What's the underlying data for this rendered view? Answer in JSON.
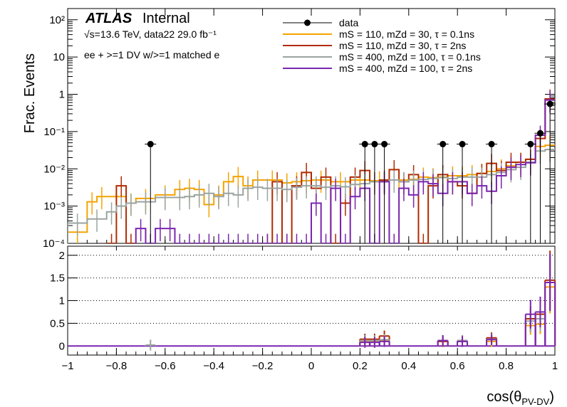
{
  "header": {
    "atlas_label": "ATLAS",
    "status_label": "Internal",
    "energy_line": "√s=13.6 TeV, data22 29.0 fb⁻¹",
    "selection_line": "ee + >=1 DV w/>=1 matched e"
  },
  "axes": {
    "ylabel_top": "Frac. Events",
    "xlabel": "cos(θPV-DV)",
    "xlabel_main": "cos(θ",
    "xlabel_sub": "PV-DV",
    "xlabel_close": ")",
    "top_yticks": [
      "10⁻⁴",
      "10⁻³",
      "10⁻²",
      "10⁻¹",
      "1",
      "10",
      "10²"
    ],
    "bottom_yticks": [
      "0",
      "0.5",
      "1",
      "1.5",
      "2"
    ],
    "xticks": [
      "−1",
      "−0.8",
      "−0.6",
      "−0.4",
      "−0.2",
      "0",
      "0.2",
      "0.4",
      "0.6",
      "0.8",
      "1"
    ]
  },
  "legend": [
    {
      "label": "data",
      "color": "#000000",
      "kind": "marker"
    },
    {
      "label": "mS = 110, mZd = 30, τ = 0.1ns",
      "color": "#f5a300",
      "kind": "line"
    },
    {
      "label": "mS = 110, mZd = 30, τ = 2ns",
      "color": "#b02a00",
      "kind": "line"
    },
    {
      "label": "mS = 400, mZd = 100, τ = 0.1ns",
      "color": "#9aa4a0",
      "kind": "line"
    },
    {
      "label": "mS = 400, mZd = 100, τ = 2ns",
      "color": "#7b25b0",
      "kind": "line"
    }
  ],
  "chart_data": {
    "type": "line",
    "subtype": "step-histogram-with-ratio",
    "x_range": [
      -1,
      1
    ],
    "y_range_top": [
      0.0001,
      200
    ],
    "y_scale_top": "log",
    "y_range_bottom": [
      -0.2,
      2.2
    ],
    "grid_bottom": true,
    "legend_position": "top-right",
    "data": [
      {
        "x": -0.66,
        "y": 0.046
      },
      {
        "x": 0.22,
        "y": 0.046
      },
      {
        "x": 0.26,
        "y": 0.046
      },
      {
        "x": 0.3,
        "y": 0.046
      },
      {
        "x": 0.54,
        "y": 0.046
      },
      {
        "x": 0.62,
        "y": 0.046
      },
      {
        "x": 0.74,
        "y": 0.046
      },
      {
        "x": 0.9,
        "y": 0.046
      },
      {
        "x": 0.94,
        "y": 0.09
      },
      {
        "x": 0.98,
        "y": 0.55
      }
    ],
    "series": [
      {
        "name": "mS = 110, mZd = 30, τ = 0.1ns",
        "color": "#f5a300",
        "edges": [
          -1.0,
          -0.92,
          -0.88,
          -0.84,
          -0.76,
          -0.72,
          -0.64,
          -0.56,
          -0.52,
          -0.48,
          -0.44,
          -0.4,
          -0.36,
          -0.32,
          -0.28,
          -0.24,
          -0.2,
          -0.12,
          -0.08,
          -0.04,
          0.0,
          0.08,
          0.16,
          0.24,
          0.32,
          0.4,
          0.44,
          0.48,
          0.52,
          0.56,
          0.6,
          0.64,
          0.68,
          0.72,
          0.76,
          0.8,
          0.84,
          0.88,
          0.92,
          0.96,
          1.0
        ],
        "values": [
          0.0002,
          0.0013,
          0.0018,
          0.0018,
          0.0012,
          0.0016,
          0.002,
          0.0028,
          0.003,
          0.0028,
          0.0011,
          0.002,
          0.0045,
          0.0062,
          0.0035,
          0.005,
          0.005,
          0.0042,
          0.0045,
          0.0048,
          0.005,
          0.0045,
          0.005,
          0.0048,
          0.005,
          0.0052,
          0.006,
          0.0058,
          0.006,
          0.0065,
          0.0065,
          0.007,
          0.0075,
          0.0085,
          0.01,
          0.012,
          0.015,
          0.018,
          0.04,
          0.043
        ],
        "ratio": [
          {
            "x": 0.22,
            "y": 0.1
          },
          {
            "x": 0.26,
            "y": 0.1
          },
          {
            "x": 0.3,
            "y": 0.12
          },
          {
            "x": 0.54,
            "y": 0.1
          },
          {
            "x": 0.62,
            "y": 0.1
          },
          {
            "x": 0.74,
            "y": 0.1
          },
          {
            "x": 0.9,
            "y": 0.45
          },
          {
            "x": 0.94,
            "y": 0.48
          },
          {
            "x": 0.98,
            "y": 1.3
          }
        ]
      },
      {
        "name": "mS = 110, mZd = 30, τ = 2ns",
        "color": "#b02a00",
        "edges": [
          -1.0,
          -0.88,
          -0.84,
          -0.8,
          -0.76,
          -0.72,
          -0.2,
          -0.16,
          -0.12,
          -0.08,
          -0.04,
          0.0,
          0.04,
          0.08,
          0.12,
          0.16,
          0.2,
          0.24,
          0.28,
          0.32,
          0.36,
          0.4,
          0.44,
          0.48,
          0.52,
          0.56,
          0.6,
          0.64,
          0.68,
          0.72,
          0.76,
          0.8,
          0.84,
          0.88,
          0.92,
          0.96,
          1.0
        ],
        "values": [
          0,
          0,
          0.0001,
          0.0035,
          0.0001,
          0,
          0.0001,
          0.0045,
          0.0001,
          0.0035,
          0.008,
          0.003,
          0.006,
          0.0001,
          0.0012,
          0.006,
          0.009,
          0.0045,
          0.005,
          0.0095,
          0.0045,
          0.007,
          0.0001,
          0.0035,
          0.007,
          0.0045,
          0.0035,
          0.0022,
          0.0075,
          0.014,
          0.009,
          0.015,
          0.015,
          0.018,
          0.065,
          0.75
        ],
        "ratio": [
          {
            "x": 0.22,
            "y": 0.15
          },
          {
            "x": 0.26,
            "y": 0.15
          },
          {
            "x": 0.3,
            "y": 0.22
          },
          {
            "x": 0.54,
            "y": 0.1
          },
          {
            "x": 0.62,
            "y": 0.12
          },
          {
            "x": 0.74,
            "y": 0.18
          },
          {
            "x": 0.9,
            "y": 0.6
          },
          {
            "x": 0.94,
            "y": 0.7
          },
          {
            "x": 0.98,
            "y": 1.45
          }
        ]
      },
      {
        "name": "mS = 400, mZd = 100, τ = 0.1ns",
        "color": "#9aa4a0",
        "edges": [
          -1.0,
          -0.92,
          -0.84,
          -0.8,
          -0.76,
          -0.72,
          -0.64,
          -0.56,
          -0.52,
          -0.48,
          -0.44,
          -0.4,
          -0.36,
          -0.32,
          -0.28,
          -0.24,
          -0.2,
          -0.16,
          -0.12,
          -0.08,
          -0.04,
          0.0,
          0.04,
          0.08,
          0.12,
          0.16,
          0.2,
          0.24,
          0.28,
          0.32,
          0.36,
          0.4,
          0.44,
          0.48,
          0.52,
          0.56,
          0.6,
          0.64,
          0.68,
          0.72,
          0.76,
          0.8,
          0.84,
          0.88,
          0.92,
          0.96,
          1.0
        ],
        "values": [
          0.00035,
          0.00045,
          0.0007,
          0.001,
          0.0012,
          0.0013,
          0.0017,
          0.0017,
          0.0018,
          0.002,
          0.0022,
          0.0018,
          0.0022,
          0.002,
          0.003,
          0.0032,
          0.003,
          0.003,
          0.0028,
          0.0032,
          0.0035,
          0.0035,
          0.0032,
          0.0035,
          0.0033,
          0.0038,
          0.004,
          0.0045,
          0.0045,
          0.005,
          0.0045,
          0.005,
          0.0052,
          0.0055,
          0.0058,
          0.0055,
          0.006,
          0.006,
          0.006,
          0.007,
          0.008,
          0.0095,
          0.011,
          0.015,
          0.03,
          0.033
        ],
        "ratio": [
          {
            "x": -0.66,
            "y": 0.02
          },
          {
            "x": 0.22,
            "y": 0.12
          },
          {
            "x": 0.26,
            "y": 0.12
          },
          {
            "x": 0.3,
            "y": 0.14
          },
          {
            "x": 0.54,
            "y": 0.12
          },
          {
            "x": 0.62,
            "y": 0.12
          },
          {
            "x": 0.74,
            "y": 0.15
          },
          {
            "x": 0.9,
            "y": 0.55
          },
          {
            "x": 0.94,
            "y": 0.6
          },
          {
            "x": 0.98,
            "y": 1.4
          }
        ]
      },
      {
        "name": "mS = 400, mZd = 100, τ = 2ns",
        "color": "#7b25b0",
        "edges": [
          -1.0,
          -0.72,
          -0.68,
          -0.64,
          -0.6,
          -0.56,
          -0.52,
          -0.48,
          -0.44,
          -0.4,
          -0.36,
          -0.32,
          -0.28,
          -0.24,
          -0.2,
          -0.16,
          -0.12,
          -0.08,
          -0.04,
          0.0,
          0.04,
          0.08,
          0.12,
          0.16,
          0.2,
          0.24,
          0.28,
          0.32,
          0.36,
          0.4,
          0.44,
          0.48,
          0.52,
          0.56,
          0.6,
          0.64,
          0.68,
          0.72,
          0.76,
          0.8,
          0.84,
          0.88,
          0.92,
          0.96,
          1.0
        ],
        "values": [
          0,
          0.00025,
          0.0001,
          0.00025,
          0.00025,
          0.0001,
          0.0001,
          0.0001,
          0.0001,
          0.0001,
          0.0001,
          0.0001,
          0.0001,
          0.0001,
          0.0001,
          0.0001,
          0.0001,
          0.0001,
          0.0001,
          0.0012,
          0.0001,
          0.003,
          0.0001,
          0.0018,
          0.003,
          0.0001,
          0.0045,
          0.0001,
          0.003,
          0.002,
          0.0045,
          0.004,
          0.0022,
          0.0045,
          0.0045,
          0.0022,
          0.0035,
          0.0025,
          0.0065,
          0.011,
          0.013,
          0.0145,
          0.08,
          0.7
        ],
        "ratio": [
          {
            "x": 0.22,
            "y": 0.08
          },
          {
            "x": 0.26,
            "y": 0.08
          },
          {
            "x": 0.3,
            "y": 0.1
          },
          {
            "x": 0.54,
            "y": 0.12
          },
          {
            "x": 0.62,
            "y": 0.1
          },
          {
            "x": 0.74,
            "y": 0.14
          },
          {
            "x": 0.9,
            "y": 0.7
          },
          {
            "x": 0.94,
            "y": 0.75
          },
          {
            "x": 0.98,
            "y": 1.4
          }
        ]
      }
    ]
  }
}
